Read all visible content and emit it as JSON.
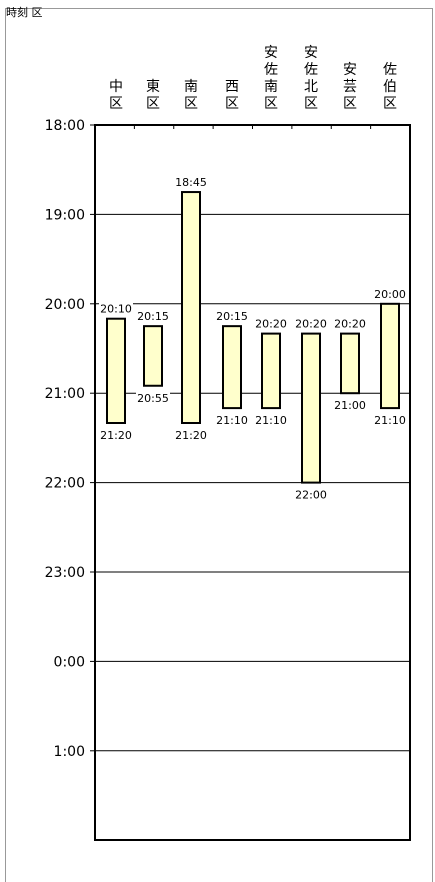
{
  "page": {
    "top_label": "時刻 区"
  },
  "chart_data": {
    "type": "bar",
    "orientation": "vertical-range",
    "title": "",
    "xlabel": "",
    "ylabel": "",
    "y_ticks": [
      "18:00",
      "19:00",
      "20:00",
      "21:00",
      "22:00",
      "23:00",
      "0:00",
      "1:00"
    ],
    "y_range_minutes": [
      1080,
      1590
    ],
    "grid": true,
    "categories": [
      [
        "中",
        "区"
      ],
      [
        "東",
        "区"
      ],
      [
        "南",
        "区"
      ],
      [
        "西",
        "区"
      ],
      [
        "安",
        "佐",
        "南",
        "区"
      ],
      [
        "安",
        "佐",
        "北",
        "区"
      ],
      [
        "安",
        "芸",
        "区"
      ],
      [
        "佐",
        "伯",
        "区"
      ]
    ],
    "series": [
      {
        "values": [
          {
            "start": "20:10",
            "end": "21:20"
          },
          {
            "start": "20:15",
            "end": "20:55"
          },
          {
            "start": "18:45",
            "end": "21:20"
          },
          {
            "start": "20:15",
            "end": "21:10"
          },
          {
            "start": "20:20",
            "end": "21:10"
          },
          {
            "start": "20:20",
            "end": "22:00"
          },
          {
            "start": "20:20",
            "end": "21:00"
          },
          {
            "start": "20:00",
            "end": "21:10"
          }
        ]
      }
    ],
    "colors": {
      "bar_fill": "#ffffcc",
      "bar_stroke": "#000000",
      "grid": "#000000"
    }
  }
}
